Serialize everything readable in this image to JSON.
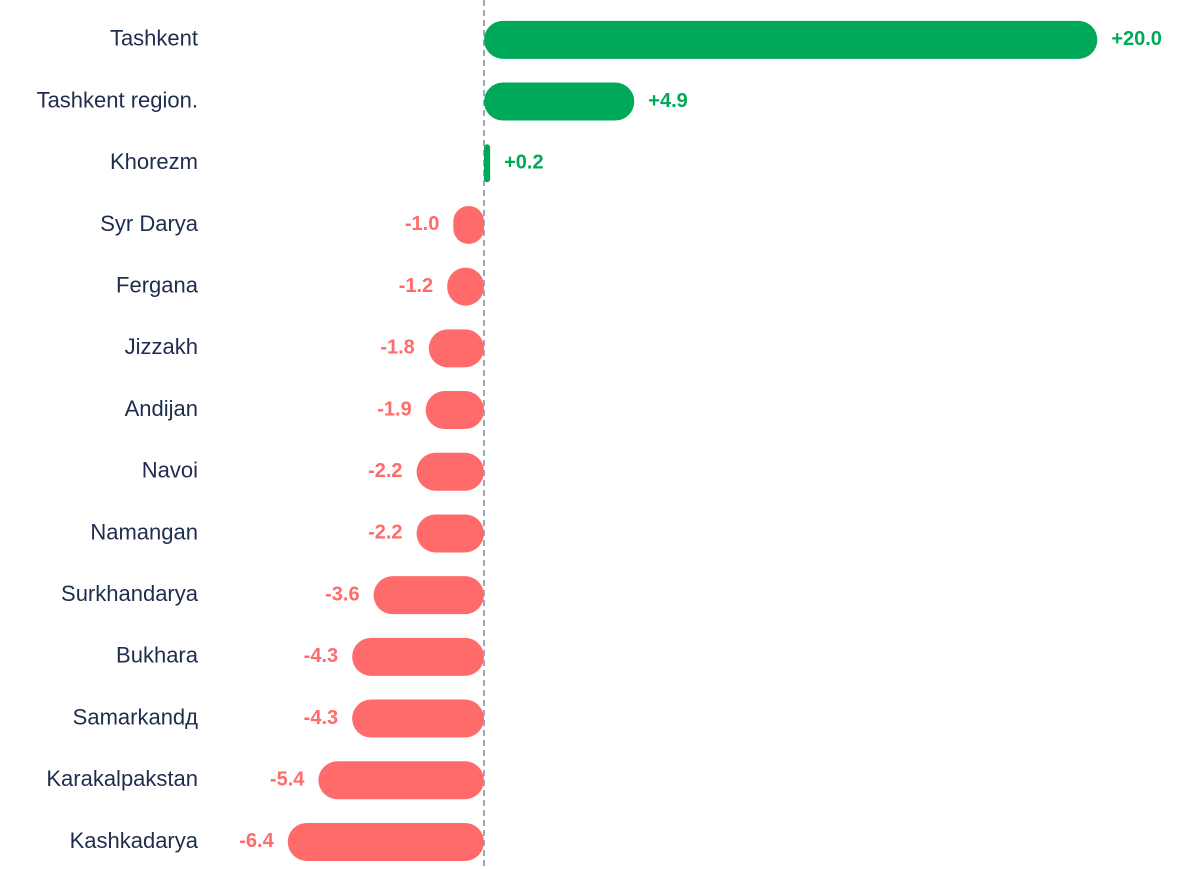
{
  "chart_data": {
    "type": "bar",
    "orientation": "horizontal",
    "categories": [
      "Tashkent",
      "Tashkent region.",
      "Khorezm",
      "Syr Darya",
      "Fergana",
      "Jizzakh",
      "Andijan",
      "Navoi",
      "Namangan",
      "Surkhandarya",
      "Bukhara",
      "Samarkandд",
      "Karakalpakstan",
      "Kashkadarya"
    ],
    "values": [
      20.0,
      4.9,
      0.2,
      -1.0,
      -1.2,
      -1.8,
      -1.9,
      -2.2,
      -2.2,
      -3.6,
      -4.3,
      -4.3,
      -5.4,
      -6.4
    ],
    "value_labels": [
      "+20.0",
      "+4.9",
      "+0.2",
      "-1.0",
      "-1.2",
      "-1.8",
      "-1.9",
      "-2.2",
      "-2.2",
      "-3.6",
      "-4.3",
      "-4.3",
      "-5.4",
      "-6.4"
    ],
    "positive_color": "#00a85a",
    "negative_color": "#ff6b6b",
    "xlim": [
      -9,
      21
    ]
  }
}
